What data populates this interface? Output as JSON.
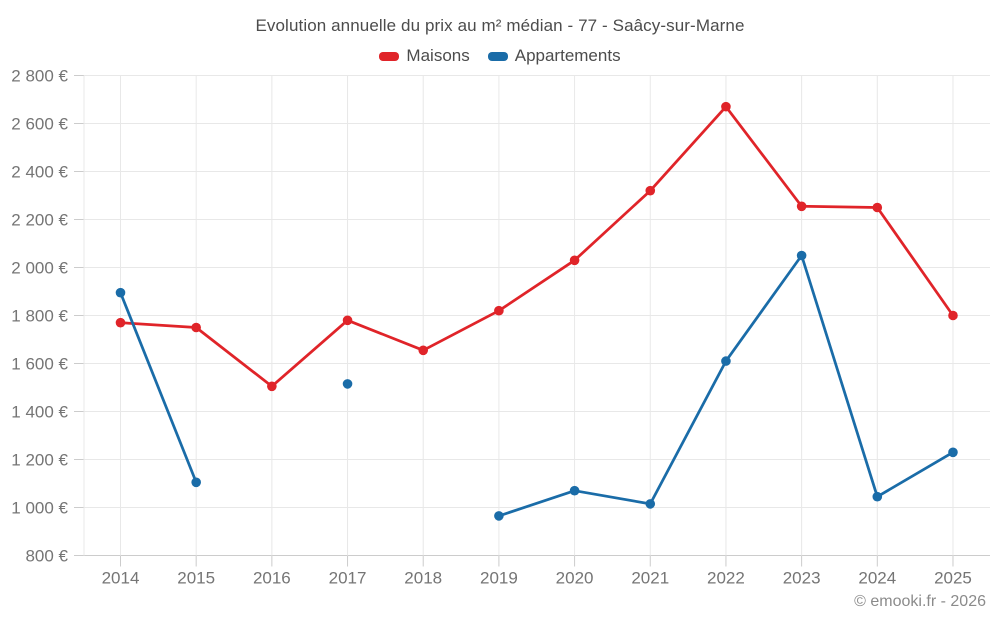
{
  "footer": {
    "credit": "© emooki.fr - 2026"
  },
  "chart_data": {
    "type": "line",
    "title": "Evolution annuelle du prix au m² médian - 77 - Saâcy-sur-Marne",
    "xlabel": "",
    "ylabel": "",
    "categories": [
      "2014",
      "2015",
      "2016",
      "2017",
      "2018",
      "2019",
      "2020",
      "2021",
      "2022",
      "2023",
      "2024",
      "2025"
    ],
    "series": [
      {
        "name": "Maisons",
        "color": "#e02429",
        "values": [
          1770,
          1750,
          1505,
          1780,
          1655,
          1820,
          2030,
          2320,
          2670,
          2255,
          2250,
          1800
        ]
      },
      {
        "name": "Appartements",
        "color": "#1a6ca8",
        "values": [
          1895,
          1105,
          null,
          1515,
          null,
          965,
          1070,
          1015,
          1610,
          2050,
          1045,
          1230
        ]
      }
    ],
    "ylim": [
      800,
      2800
    ],
    "ytick_values": [
      800,
      1000,
      1200,
      1400,
      1600,
      1800,
      2000,
      2200,
      2400,
      2600,
      2800
    ],
    "ytick_labels": [
      "800 €",
      "1 000 €",
      "1 200 €",
      "1 400 €",
      "1 600 €",
      "1 800 €",
      "2 000 €",
      "2 200 €",
      "2 400 €",
      "2 600 €",
      "2 800 €"
    ],
    "currency_suffix": "€",
    "legend_position": "top",
    "grid": true
  }
}
